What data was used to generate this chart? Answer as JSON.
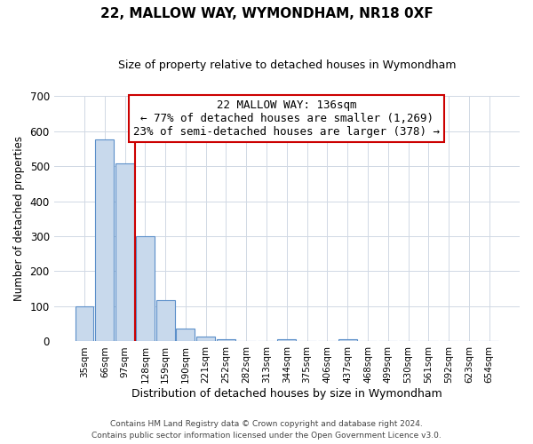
{
  "title": "22, MALLOW WAY, WYMONDHAM, NR18 0XF",
  "subtitle": "Size of property relative to detached houses in Wymondham",
  "xlabel": "Distribution of detached houses by size in Wymondham",
  "ylabel": "Number of detached properties",
  "bin_labels": [
    "35sqm",
    "66sqm",
    "97sqm",
    "128sqm",
    "159sqm",
    "190sqm",
    "221sqm",
    "252sqm",
    "282sqm",
    "313sqm",
    "344sqm",
    "375sqm",
    "406sqm",
    "437sqm",
    "468sqm",
    "499sqm",
    "530sqm",
    "561sqm",
    "592sqm",
    "623sqm",
    "654sqm"
  ],
  "bar_values": [
    100,
    575,
    507,
    300,
    118,
    37,
    14,
    6,
    0,
    0,
    6,
    0,
    0,
    6,
    0,
    0,
    0,
    0,
    0,
    0,
    0
  ],
  "bar_color": "#c8d9ec",
  "bar_edge_color": "#5b8fc9",
  "annotation_title": "22 MALLOW WAY: 136sqm",
  "annotation_line1": "← 77% of detached houses are smaller (1,269)",
  "annotation_line2": "23% of semi-detached houses are larger (378) →",
  "annotation_box_color": "#ffffff",
  "annotation_box_edge": "#cc0000",
  "vline_color": "#cc0000",
  "ylim": [
    0,
    700
  ],
  "yticks": [
    0,
    100,
    200,
    300,
    400,
    500,
    600,
    700
  ],
  "footer1": "Contains HM Land Registry data © Crown copyright and database right 2024.",
  "footer2": "Contains public sector information licensed under the Open Government Licence v3.0.",
  "background_color": "#ffffff",
  "grid_color": "#d0d8e4"
}
